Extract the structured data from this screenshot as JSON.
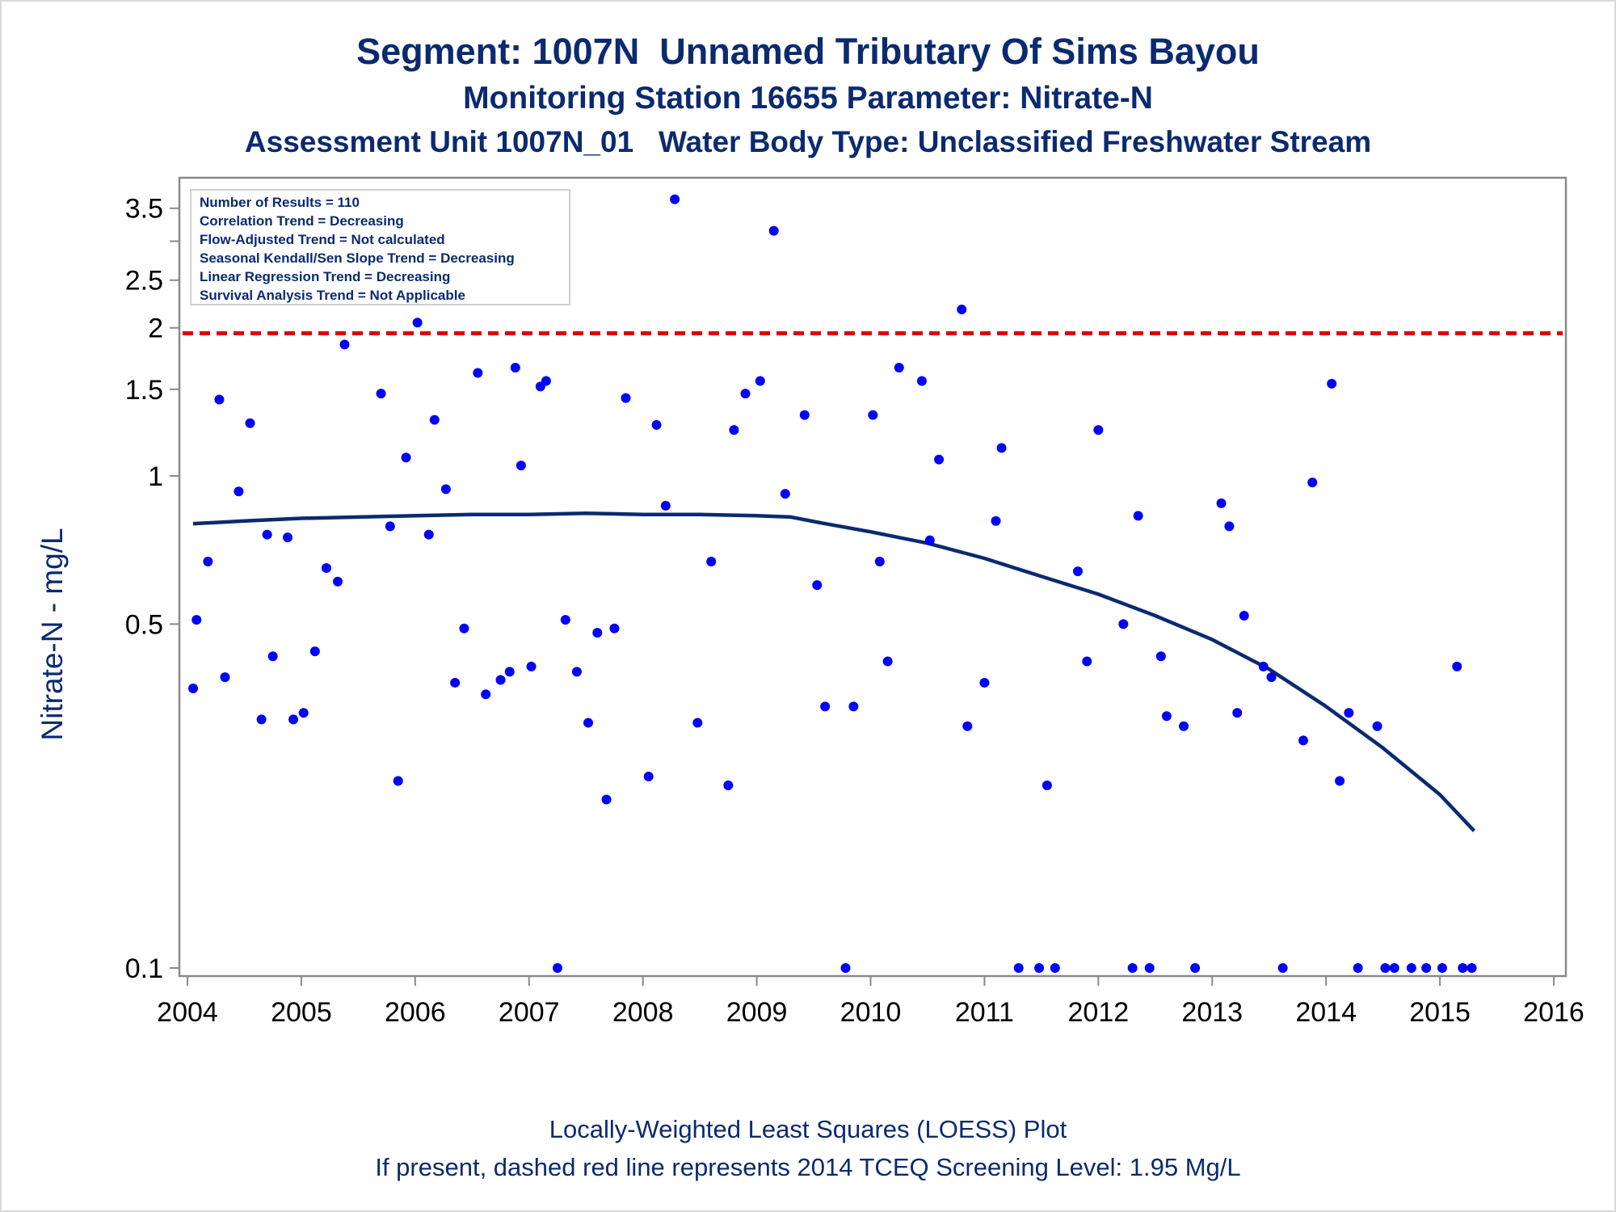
{
  "titles": {
    "line1": "Segment: 1007N  Unnamed Tributary Of Sims Bayou",
    "line2": "Monitoring Station 16655 Parameter: Nitrate-N",
    "line3": "Assessment Unit 1007N_01   Water Body Type: Unclassified Freshwater Stream"
  },
  "footer": {
    "line1": "Locally-Weighted Least Squares (LOESS) Plot",
    "line2": "If present, dashed red line represents 2014 TCEQ Screening Level: 1.95 Mg/L"
  },
  "legend": [
    "Number of Results = 110",
    "Correlation Trend = Decreasing",
    "Flow-Adjusted Trend = Not calculated",
    "Seasonal Kendall/Sen Slope Trend = Decreasing",
    "Linear Regression Trend = Decreasing",
    "Survival Analysis Trend = Not Applicable"
  ],
  "colors": {
    "title": "#0b2a6f",
    "points": "#0000ff",
    "loess": "#0b2a6f",
    "screening_line": "#dd0000",
    "axis": "#8a8a8a"
  },
  "chart_data": {
    "type": "scatter",
    "xlabel": "",
    "ylabel": "Nitrate-N - mg/L",
    "yscale": "log",
    "xlim": [
      2004,
      2016
    ],
    "ylim": [
      0.1,
      3.8
    ],
    "x_ticks": [
      2004,
      2005,
      2006,
      2007,
      2008,
      2009,
      2010,
      2011,
      2012,
      2013,
      2014,
      2015,
      2016
    ],
    "y_ticks": [
      0.1,
      0.5,
      1,
      1.5,
      2,
      2.5,
      3.5
    ],
    "y_minor_ticks": [
      3
    ],
    "grid": false,
    "legend_position": "top-left",
    "screening_level": {
      "value": 1.95,
      "style": "dashed",
      "color": "#dd0000"
    },
    "points": [
      [
        2004.05,
        0.37
      ],
      [
        2004.08,
        0.51
      ],
      [
        2004.18,
        0.67
      ],
      [
        2004.28,
        1.43
      ],
      [
        2004.33,
        0.39
      ],
      [
        2004.45,
        0.93
      ],
      [
        2004.55,
        1.28
      ],
      [
        2004.65,
        0.32
      ],
      [
        2004.7,
        0.76
      ],
      [
        2004.75,
        0.43
      ],
      [
        2004.88,
        0.75
      ],
      [
        2004.93,
        0.32
      ],
      [
        2005.02,
        0.33
      ],
      [
        2005.12,
        0.44
      ],
      [
        2005.22,
        0.65
      ],
      [
        2005.32,
        0.61
      ],
      [
        2005.38,
        1.85
      ],
      [
        2005.7,
        1.47
      ],
      [
        2005.78,
        0.79
      ],
      [
        2005.85,
        0.24
      ],
      [
        2005.92,
        1.09
      ],
      [
        2006.02,
        2.05
      ],
      [
        2006.12,
        0.76
      ],
      [
        2006.17,
        1.3
      ],
      [
        2006.27,
        0.94
      ],
      [
        2006.35,
        0.38
      ],
      [
        2006.43,
        0.49
      ],
      [
        2006.55,
        1.62
      ],
      [
        2006.62,
        0.36
      ],
      [
        2006.75,
        0.385
      ],
      [
        2006.83,
        0.4
      ],
      [
        2006.88,
        1.66
      ],
      [
        2006.93,
        1.05
      ],
      [
        2007.02,
        0.41
      ],
      [
        2007.1,
        1.52
      ],
      [
        2007.15,
        1.56
      ],
      [
        2007.25,
        0.1
      ],
      [
        2007.32,
        0.51
      ],
      [
        2007.42,
        0.4
      ],
      [
        2007.52,
        0.315
      ],
      [
        2007.6,
        0.48
      ],
      [
        2007.68,
        0.22
      ],
      [
        2007.75,
        0.49
      ],
      [
        2007.85,
        1.44
      ],
      [
        2008.05,
        0.245
      ],
      [
        2008.12,
        1.27
      ],
      [
        2008.2,
        0.87
      ],
      [
        2008.28,
        3.65
      ],
      [
        2008.48,
        0.315
      ],
      [
        2008.6,
        0.67
      ],
      [
        2008.75,
        0.235
      ],
      [
        2008.8,
        1.24
      ],
      [
        2008.9,
        1.47
      ],
      [
        2009.03,
        1.56
      ],
      [
        2009.15,
        3.15
      ],
      [
        2009.25,
        0.92
      ],
      [
        2009.42,
        1.33
      ],
      [
        2009.53,
        0.6
      ],
      [
        2009.6,
        0.34
      ],
      [
        2009.78,
        0.1
      ],
      [
        2009.85,
        0.34
      ],
      [
        2010.02,
        1.33
      ],
      [
        2010.08,
        0.67
      ],
      [
        2010.15,
        0.42
      ],
      [
        2010.25,
        1.66
      ],
      [
        2010.45,
        1.56
      ],
      [
        2010.52,
        0.74
      ],
      [
        2010.6,
        1.08
      ],
      [
        2010.8,
        2.18
      ],
      [
        2010.85,
        0.31
      ],
      [
        2011.0,
        0.38
      ],
      [
        2011.1,
        0.81
      ],
      [
        2011.15,
        1.14
      ],
      [
        2011.3,
        0.1
      ],
      [
        2011.48,
        0.1
      ],
      [
        2011.55,
        0.235
      ],
      [
        2011.62,
        0.1
      ],
      [
        2011.82,
        0.64
      ],
      [
        2011.9,
        0.42
      ],
      [
        2012.0,
        1.24
      ],
      [
        2012.22,
        0.5
      ],
      [
        2012.3,
        0.1
      ],
      [
        2012.35,
        0.83
      ],
      [
        2012.45,
        0.1
      ],
      [
        2012.55,
        0.43
      ],
      [
        2012.6,
        0.325
      ],
      [
        2012.75,
        0.31
      ],
      [
        2012.85,
        0.1
      ],
      [
        2013.08,
        0.88
      ],
      [
        2013.15,
        0.79
      ],
      [
        2013.22,
        0.33
      ],
      [
        2013.28,
        0.52
      ],
      [
        2013.45,
        0.41
      ],
      [
        2013.52,
        0.39
      ],
      [
        2013.62,
        0.1
      ],
      [
        2013.8,
        0.29
      ],
      [
        2013.88,
        0.97
      ],
      [
        2014.05,
        1.54
      ],
      [
        2014.12,
        0.24
      ],
      [
        2014.2,
        0.33
      ],
      [
        2014.28,
        0.1
      ],
      [
        2014.45,
        0.31
      ],
      [
        2014.52,
        0.1
      ],
      [
        2014.6,
        0.1
      ],
      [
        2014.75,
        0.1
      ],
      [
        2014.88,
        0.1
      ],
      [
        2015.02,
        0.1
      ],
      [
        2015.15,
        0.41
      ],
      [
        2015.2,
        0.1
      ],
      [
        2015.28,
        0.1
      ]
    ],
    "loess_curve": [
      [
        2004.05,
        0.8
      ],
      [
        2004.5,
        0.81
      ],
      [
        2005.0,
        0.82
      ],
      [
        2005.5,
        0.825
      ],
      [
        2006.0,
        0.83
      ],
      [
        2006.5,
        0.835
      ],
      [
        2007.0,
        0.835
      ],
      [
        2007.5,
        0.84
      ],
      [
        2008.0,
        0.835
      ],
      [
        2008.5,
        0.835
      ],
      [
        2009.0,
        0.83
      ],
      [
        2009.3,
        0.825
      ],
      [
        2009.6,
        0.8
      ],
      [
        2010.0,
        0.77
      ],
      [
        2010.5,
        0.73
      ],
      [
        2011.0,
        0.68
      ],
      [
        2011.5,
        0.625
      ],
      [
        2012.0,
        0.575
      ],
      [
        2012.5,
        0.52
      ],
      [
        2013.0,
        0.465
      ],
      [
        2013.5,
        0.405
      ],
      [
        2014.0,
        0.34
      ],
      [
        2014.5,
        0.28
      ],
      [
        2015.0,
        0.225
      ],
      [
        2015.3,
        0.19
      ]
    ]
  }
}
